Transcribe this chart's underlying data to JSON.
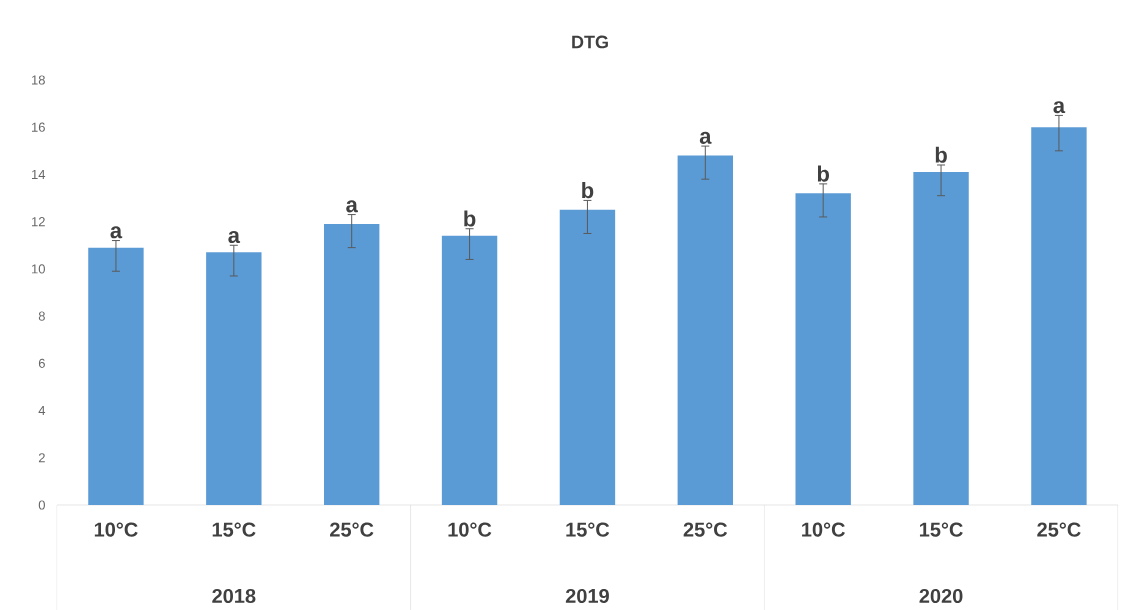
{
  "chart_data": {
    "type": "bar",
    "title": "DTG",
    "categories": [
      "10°C",
      "15°C",
      "25°C",
      "10°C",
      "15°C",
      "25°C",
      "10°C",
      "15°C",
      "25°C"
    ],
    "values": [
      10.9,
      10.7,
      11.9,
      11.4,
      12.5,
      14.8,
      13.2,
      14.1,
      16.0
    ],
    "errors": [
      [
        9.9,
        11.2
      ],
      [
        9.7,
        11.0
      ],
      [
        10.9,
        12.3
      ],
      [
        10.4,
        11.7
      ],
      [
        11.5,
        12.9
      ],
      [
        13.8,
        15.2
      ],
      [
        12.2,
        13.6
      ],
      [
        13.1,
        14.4
      ],
      [
        15.0,
        16.5
      ]
    ],
    "value_labels": [
      "a",
      "a",
      "a",
      "b",
      "b",
      "a",
      "b",
      "b",
      "a"
    ],
    "annotations": [
      "2018",
      "2019",
      "2020"
    ],
    "color": "#5b9bd5",
    "ylim": [
      0,
      18
    ],
    "yticks": [
      0,
      2,
      4,
      6,
      8,
      10,
      12,
      14,
      16,
      18
    ],
    "grid": false
  }
}
